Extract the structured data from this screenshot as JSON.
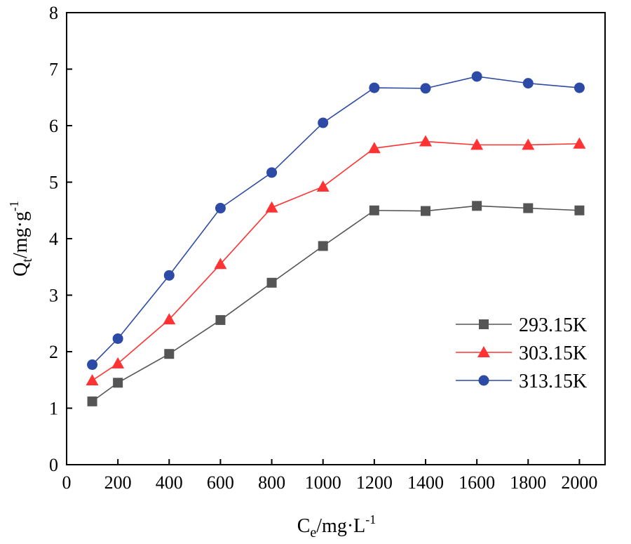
{
  "chart_data": {
    "type": "line",
    "title": "",
    "xlabel": {
      "base": "C",
      "sub": "e",
      "unit": "/mg·L",
      "sup": "-1"
    },
    "ylabel": {
      "base": "Q",
      "sub": "t",
      "unit": "/mg·g",
      "sup": "-1"
    },
    "xlim": [
      0,
      2100
    ],
    "ylim": [
      0,
      8
    ],
    "x_ticks": [
      0,
      200,
      400,
      600,
      800,
      1000,
      1200,
      1400,
      1600,
      1800,
      2000
    ],
    "y_ticks": [
      0,
      1,
      2,
      3,
      4,
      5,
      6,
      7,
      8
    ],
    "x": [
      100,
      200,
      400,
      600,
      800,
      1000,
      1200,
      1400,
      1600,
      1800,
      2000
    ],
    "series": [
      {
        "name": "293.15K",
        "color": "#555555",
        "marker": "square",
        "values": [
          1.12,
          1.45,
          1.96,
          2.56,
          3.22,
          3.87,
          4.5,
          4.49,
          4.58,
          4.54,
          4.5
        ]
      },
      {
        "name": "303.15K",
        "color": "#ff3333",
        "marker": "triangle",
        "values": [
          1.49,
          1.79,
          2.57,
          3.55,
          4.55,
          4.92,
          5.6,
          5.72,
          5.66,
          5.66,
          5.68
        ]
      },
      {
        "name": "313.15K",
        "color": "#2d4aa6",
        "marker": "circle",
        "values": [
          1.77,
          2.23,
          3.35,
          4.54,
          5.17,
          6.05,
          6.67,
          6.66,
          6.87,
          6.75,
          6.67
        ]
      }
    ],
    "legend_position": "bottom-right"
  }
}
